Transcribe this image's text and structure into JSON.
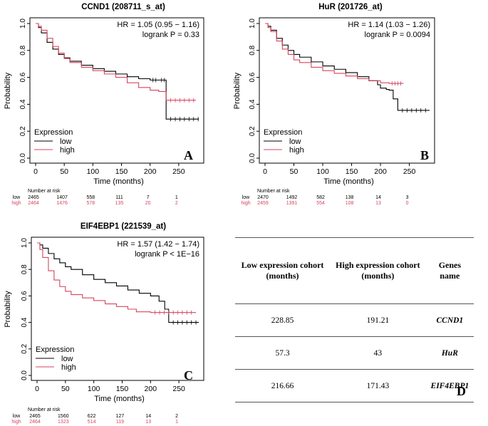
{
  "chart_data": [
    {
      "type": "line",
      "panel": "A",
      "title": "CCND1 (208711_s_at)",
      "hr_text": "HR = 1.05 (0.95 − 1.16)",
      "p_text": "logrank P = 0.33",
      "xlabel": "Time (months)",
      "ylabel": "Probability",
      "xticks": [
        "0",
        "50",
        "100",
        "150",
        "200",
        "250"
      ],
      "yticks": [
        "0.0",
        "0.2",
        "0.4",
        "0.6",
        "0.8",
        "1.0"
      ],
      "xlim": [
        0,
        290
      ],
      "ylim": [
        0,
        1
      ],
      "legend_title": "Expression",
      "series": [
        {
          "name": "low",
          "color": "#000000",
          "x": [
            0,
            5,
            10,
            20,
            30,
            40,
            50,
            60,
            80,
            100,
            120,
            140,
            160,
            180,
            200,
            215,
            228,
            228,
            285
          ],
          "y": [
            1.0,
            0.97,
            0.93,
            0.86,
            0.81,
            0.77,
            0.745,
            0.72,
            0.69,
            0.665,
            0.645,
            0.625,
            0.605,
            0.59,
            0.58,
            0.58,
            0.58,
            0.29,
            0.29
          ]
        },
        {
          "name": "high",
          "color": "#d6465e",
          "x": [
            0,
            5,
            10,
            20,
            30,
            40,
            50,
            60,
            80,
            100,
            120,
            140,
            160,
            180,
            200,
            215,
            225,
            228,
            280
          ],
          "y": [
            1.0,
            0.98,
            0.95,
            0.89,
            0.83,
            0.78,
            0.74,
            0.71,
            0.675,
            0.65,
            0.625,
            0.6,
            0.56,
            0.525,
            0.505,
            0.495,
            0.495,
            0.43,
            0.43
          ]
        }
      ],
      "risk_header": "Number at risk",
      "risk": [
        {
          "label": "low",
          "color": "#000000",
          "values": [
            "2465",
            "1407",
            "558",
            "111",
            "7",
            "1"
          ]
        },
        {
          "label": "high",
          "color": "#d6465e",
          "values": [
            "2464",
            "1476",
            "578",
            "135",
            "20",
            "2"
          ]
        }
      ],
      "panel_label": "A"
    },
    {
      "type": "line",
      "panel": "B",
      "title": "HuR (201726_at)",
      "hr_text": "HR = 1.14 (1.03 − 1.26)",
      "p_text": "logrank P = 0.0094",
      "xlabel": "Time (months)",
      "ylabel": "Probability",
      "xticks": [
        "0",
        "50",
        "100",
        "150",
        "200",
        "250"
      ],
      "yticks": [
        "0.0",
        "0.2",
        "0.4",
        "0.6",
        "0.8",
        "1.0"
      ],
      "xlim": [
        0,
        290
      ],
      "ylim": [
        0,
        1
      ],
      "legend_title": "Expression",
      "series": [
        {
          "name": "low",
          "color": "#000000",
          "x": [
            0,
            5,
            10,
            20,
            30,
            40,
            50,
            60,
            80,
            100,
            120,
            140,
            160,
            180,
            195,
            200,
            210,
            215,
            222,
            230,
            285
          ],
          "y": [
            1.0,
            0.98,
            0.95,
            0.89,
            0.84,
            0.8,
            0.77,
            0.75,
            0.715,
            0.685,
            0.66,
            0.635,
            0.605,
            0.575,
            0.545,
            0.52,
            0.51,
            0.505,
            0.44,
            0.355,
            0.355
          ]
        },
        {
          "name": "high",
          "color": "#d6465e",
          "x": [
            0,
            5,
            10,
            20,
            30,
            40,
            50,
            60,
            80,
            100,
            120,
            140,
            160,
            180,
            200,
            215,
            240
          ],
          "y": [
            1.0,
            0.97,
            0.94,
            0.87,
            0.81,
            0.77,
            0.73,
            0.71,
            0.675,
            0.65,
            0.63,
            0.61,
            0.59,
            0.575,
            0.56,
            0.555,
            0.555
          ]
        }
      ],
      "risk_header": "Number at risk",
      "risk": [
        {
          "label": "low",
          "color": "#000000",
          "values": [
            "2470",
            "1492",
            "582",
            "138",
            "14",
            "3"
          ]
        },
        {
          "label": "high",
          "color": "#d6465e",
          "values": [
            "2459",
            "1391",
            "554",
            "108",
            "13",
            "0"
          ]
        }
      ],
      "panel_label": "B"
    },
    {
      "type": "line",
      "panel": "C",
      "title": "EIF4EBP1 (221539_at)",
      "hr_text": "HR = 1.57 (1.42 − 1.74)",
      "p_text": "logrank P < 1E−16",
      "xlabel": "Time (months)",
      "ylabel": "Probability",
      "xticks": [
        "0",
        "50",
        "100",
        "150",
        "200",
        "250"
      ],
      "yticks": [
        "0.0",
        "0.2",
        "0.4",
        "0.6",
        "0.8",
        "1.0"
      ],
      "xlim": [
        0,
        290
      ],
      "ylim": [
        0,
        1
      ],
      "legend_title": "Expression",
      "series": [
        {
          "name": "low",
          "color": "#000000",
          "x": [
            0,
            5,
            10,
            20,
            30,
            40,
            50,
            60,
            80,
            100,
            120,
            140,
            160,
            180,
            200,
            215,
            225,
            232,
            285
          ],
          "y": [
            1.0,
            0.985,
            0.96,
            0.92,
            0.88,
            0.85,
            0.82,
            0.8,
            0.76,
            0.725,
            0.7,
            0.675,
            0.645,
            0.62,
            0.6,
            0.56,
            0.5,
            0.4,
            0.4
          ]
        },
        {
          "name": "high",
          "color": "#d6465e",
          "x": [
            0,
            5,
            10,
            20,
            30,
            40,
            50,
            60,
            80,
            100,
            120,
            140,
            160,
            175,
            200,
            280
          ],
          "y": [
            1.0,
            0.95,
            0.89,
            0.79,
            0.72,
            0.67,
            0.635,
            0.61,
            0.585,
            0.565,
            0.54,
            0.52,
            0.5,
            0.48,
            0.475,
            0.475
          ]
        }
      ],
      "risk_header": "Number at risk",
      "risk": [
        {
          "label": "low",
          "color": "#000000",
          "values": [
            "2465",
            "1560",
            "622",
            "127",
            "14",
            "2"
          ]
        },
        {
          "label": "high",
          "color": "#d6465e",
          "values": [
            "2464",
            "1323",
            "514",
            "119",
            "13",
            "1"
          ]
        }
      ],
      "panel_label": "C"
    },
    {
      "type": "table",
      "panel": "D",
      "columns": [
        "Low expression cohort (months)",
        "High expression cohort (months)",
        "Genes name"
      ],
      "rows": [
        [
          "228.85",
          "191.21",
          "CCND1"
        ],
        [
          "57.3",
          "43",
          "HuR"
        ],
        [
          "216.66",
          "171.43",
          "EIF4EBP1"
        ]
      ],
      "panel_label": "D"
    }
  ]
}
